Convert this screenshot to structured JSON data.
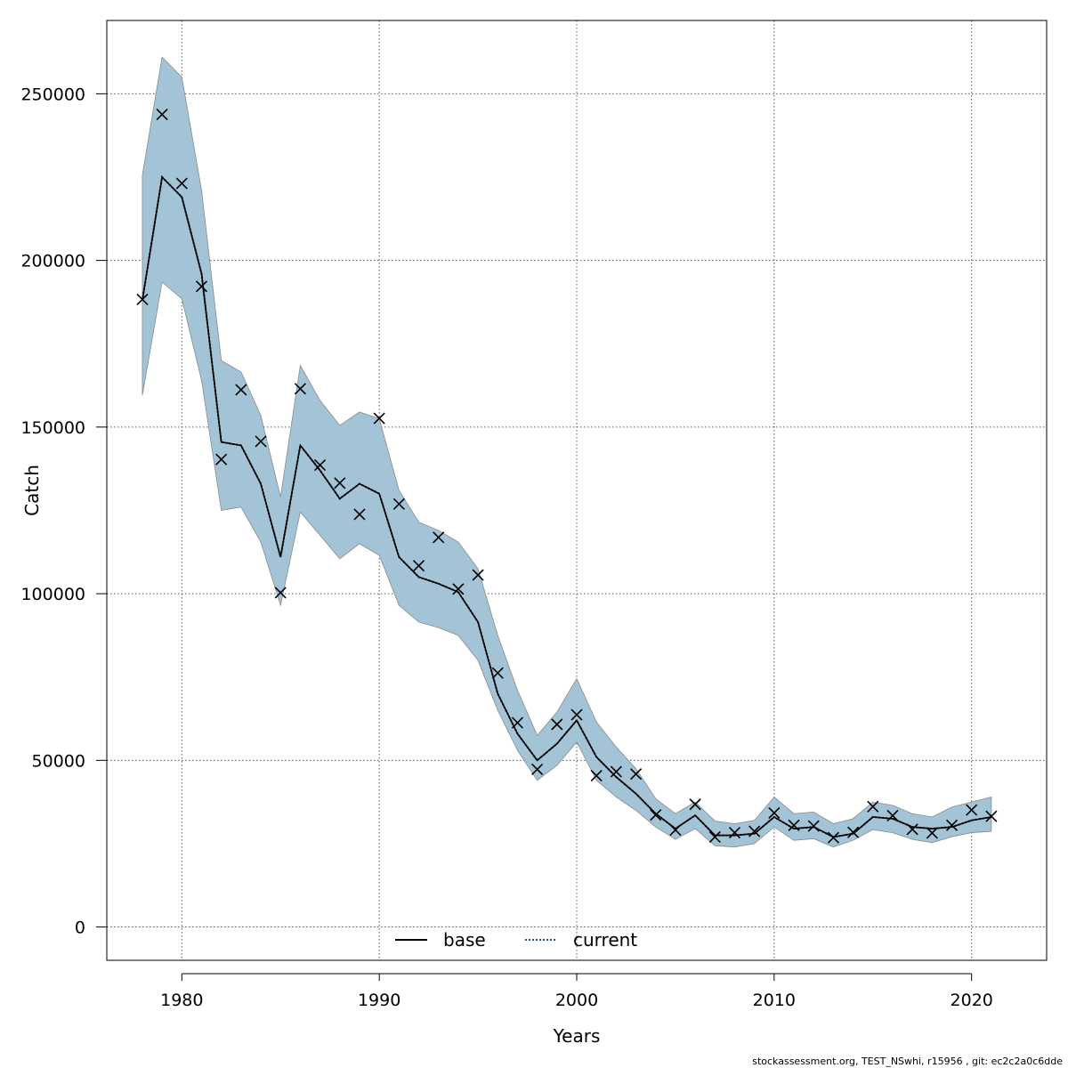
{
  "chart_data": {
    "type": "line",
    "title": "",
    "xlabel": "Years",
    "ylabel": "Catch",
    "xlim": [
      1976.2,
      2023.8
    ],
    "ylim": [
      -10000,
      272000
    ],
    "x_ticks": [
      1980,
      1990,
      2000,
      2010,
      2020
    ],
    "y_ticks": [
      0,
      50000,
      100000,
      150000,
      200000,
      250000
    ],
    "x_tick_labels": [
      "1980",
      "1990",
      "2000",
      "2010",
      "2020"
    ],
    "y_tick_labels": [
      "0",
      "50000",
      "100000",
      "150000",
      "200000",
      "250000"
    ],
    "grid": true,
    "legend": {
      "position": "bottom-center",
      "entries": [
        "base",
        "current"
      ]
    },
    "colors": {
      "band": "#a3c4d6",
      "band_edge": "#8a8a8a",
      "current": "#1b4f72",
      "base": "#000000",
      "observed": "#000000",
      "grid": "#555555"
    },
    "x": [
      1978,
      1979,
      1980,
      1981,
      1982,
      1983,
      1984,
      1985,
      1986,
      1987,
      1988,
      1989,
      1990,
      1991,
      1992,
      1993,
      1994,
      1995,
      1996,
      1997,
      1998,
      1999,
      2000,
      2001,
      2002,
      2003,
      2004,
      2005,
      2006,
      2007,
      2008,
      2009,
      2010,
      2011,
      2012,
      2013,
      2014,
      2015,
      2016,
      2017,
      2018,
      2019,
      2020,
      2021
    ],
    "series": [
      {
        "name": "current",
        "style": "dotted",
        "values": [
          188000,
          225000,
          219000,
          196000,
          145500,
          144500,
          133000,
          111000,
          144500,
          137000,
          128500,
          133000,
          130000,
          111000,
          105000,
          103000,
          100500,
          91500,
          70000,
          58000,
          50000,
          55000,
          62000,
          51000,
          45000,
          40000,
          34000,
          29500,
          33500,
          27500,
          27500,
          28000,
          33000,
          29500,
          30000,
          27000,
          28000,
          33000,
          32500,
          30000,
          29500,
          30000,
          32000,
          33000
        ]
      },
      {
        "name": "base",
        "style": "solid",
        "values": [
          188000,
          225000,
          219000,
          196000,
          145500,
          144500,
          133000,
          111000,
          144500,
          137000,
          128500,
          133000,
          130000,
          111000,
          105000,
          103000,
          100500,
          91500,
          70000,
          58000,
          50000,
          55000,
          62000,
          51000,
          45000,
          40000,
          34000,
          29500,
          33500,
          27500,
          27500,
          28000,
          33000,
          29500,
          30000,
          27000,
          28000,
          33000,
          32500,
          30000,
          29500,
          30000,
          32000,
          33000
        ]
      }
    ],
    "interval_upper": [
      225500,
      261000,
      255000,
      221000,
      170000,
      166500,
      153500,
      129000,
      168500,
      158000,
      150500,
      154500,
      152500,
      131000,
      121500,
      119000,
      115500,
      107500,
      87500,
      71000,
      57500,
      64500,
      74500,
      61500,
      54000,
      47500,
      38500,
      34000,
      37500,
      31800,
      31000,
      32000,
      39000,
      34000,
      34500,
      31000,
      32500,
      37500,
      36500,
      34000,
      33000,
      36000,
      37500,
      39000
    ],
    "interval_lower": [
      159500,
      193500,
      188500,
      164000,
      125000,
      126000,
      115500,
      96500,
      124500,
      117500,
      110500,
      115000,
      111500,
      96500,
      91500,
      89800,
      87500,
      80000,
      65000,
      53000,
      44000,
      48500,
      55500,
      44000,
      39000,
      35000,
      30000,
      26300,
      29500,
      24400,
      24000,
      25000,
      30000,
      26000,
      26500,
      24000,
      26000,
      29200,
      28300,
      26300,
      25300,
      27100,
      28300,
      28700
    ],
    "observed": [
      188300,
      243800,
      223100,
      192200,
      140300,
      161200,
      145700,
      100300,
      161500,
      138600,
      133200,
      123800,
      152600,
      126900,
      108400,
      116900,
      101400,
      105600,
      76200,
      61300,
      47300,
      60800,
      63700,
      45400,
      46600,
      45900,
      33600,
      29100,
      36800,
      27000,
      28300,
      28700,
      34200,
      30500,
      30300,
      26800,
      28400,
      36100,
      33400,
      29300,
      28200,
      30500,
      35100,
      33200
    ]
  },
  "footer": {
    "text": "stockassessment.org, TEST_NSwhi, r15956 , git: ec2c2a0c6dde"
  }
}
